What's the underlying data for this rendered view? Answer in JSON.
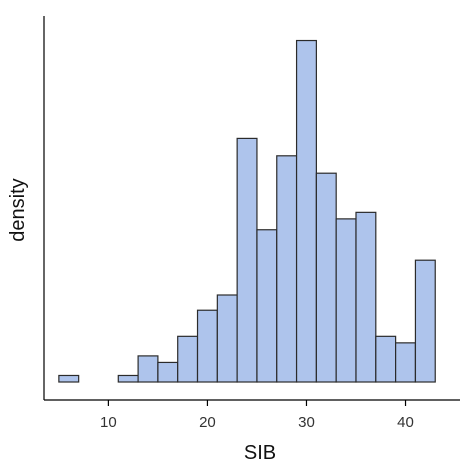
{
  "chart_data": {
    "type": "bar",
    "subtype": "histogram",
    "xlabel": "SIB",
    "ylabel": "density",
    "xlim": [
      3.5,
      45.5
    ],
    "x_ticks": [
      10,
      20,
      30,
      40
    ],
    "y_tick_labels_shown": false,
    "bin_width": 2,
    "bins": [
      {
        "start": 5,
        "end": 7,
        "value": 0.3
      },
      {
        "start": 7,
        "end": 9,
        "value": 0.0
      },
      {
        "start": 9,
        "end": 11,
        "value": 0.0
      },
      {
        "start": 11,
        "end": 13,
        "value": 0.3
      },
      {
        "start": 13,
        "end": 15,
        "value": 1.2
      },
      {
        "start": 15,
        "end": 17,
        "value": 0.9
      },
      {
        "start": 17,
        "end": 19,
        "value": 2.1
      },
      {
        "start": 19,
        "end": 21,
        "value": 3.3
      },
      {
        "start": 21,
        "end": 23,
        "value": 4.0
      },
      {
        "start": 23,
        "end": 25,
        "value": 11.2
      },
      {
        "start": 25,
        "end": 27,
        "value": 7.0
      },
      {
        "start": 27,
        "end": 29,
        "value": 10.4
      },
      {
        "start": 29,
        "end": 31,
        "value": 15.7
      },
      {
        "start": 31,
        "end": 33,
        "value": 9.6
      },
      {
        "start": 33,
        "end": 35,
        "value": 7.5
      },
      {
        "start": 35,
        "end": 37,
        "value": 7.8
      },
      {
        "start": 37,
        "end": 39,
        "value": 2.1
      },
      {
        "start": 39,
        "end": 41,
        "value": 1.8
      },
      {
        "start": 41,
        "end": 43,
        "value": 5.6
      }
    ],
    "ylim": [
      0,
      16
    ],
    "grid": false,
    "colors": {
      "bar_fill": "#aec4ec",
      "bar_stroke": "#2b2b2b"
    }
  }
}
